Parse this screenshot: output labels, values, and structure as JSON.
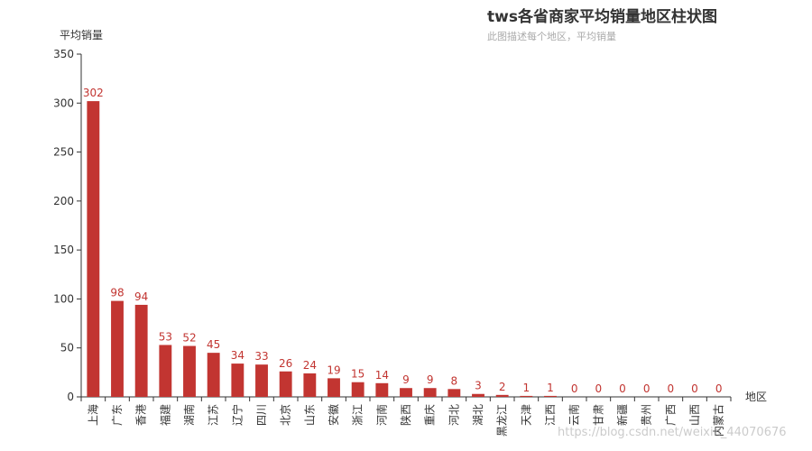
{
  "chart_data": {
    "type": "bar",
    "title": "tws各省商家平均销量地区柱状图",
    "subtitle": "此图描述每个地区，平均销量",
    "xlabel": "地区",
    "ylabel": "平均销量",
    "ylim": [
      0,
      350
    ],
    "yticks": [
      0,
      50,
      100,
      150,
      200,
      250,
      300,
      350
    ],
    "categories": [
      "上海",
      "广东",
      "香港",
      "福建",
      "湖南",
      "江苏",
      "辽宁",
      "四川",
      "北京",
      "山东",
      "安徽",
      "浙江",
      "河南",
      "陕西",
      "重庆",
      "河北",
      "湖北",
      "黑龙江",
      "天津",
      "江西",
      "云南",
      "甘肃",
      "新疆",
      "贵州",
      "广西",
      "山西",
      "内蒙古"
    ],
    "values": [
      302,
      98,
      94,
      53,
      52,
      45,
      34,
      33,
      26,
      24,
      19,
      15,
      14,
      9,
      9,
      8,
      3,
      2,
      1,
      1,
      0,
      0,
      0,
      0,
      0,
      0,
      0
    ],
    "grid": false,
    "colors": {
      "bar": "#c23531",
      "label": "#c23531",
      "axis": "#333333"
    }
  },
  "watermark": "https://blog.csdn.net/weixin_44070676"
}
